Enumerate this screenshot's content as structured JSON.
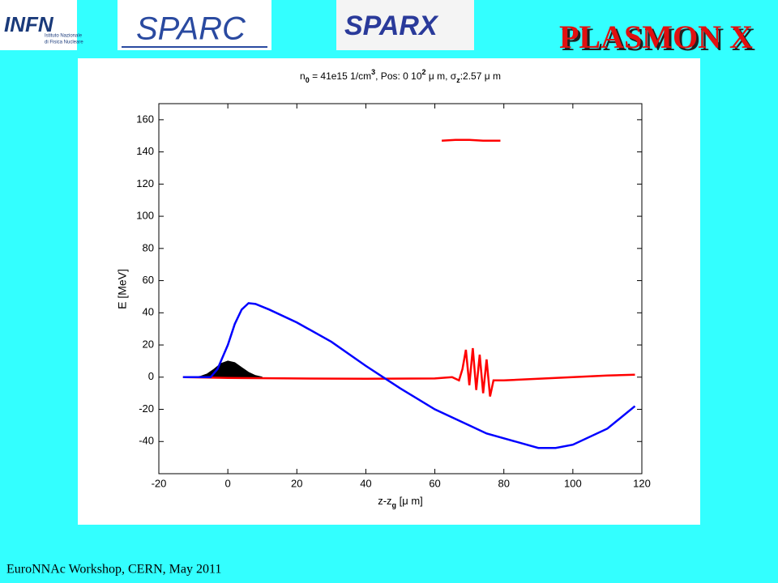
{
  "logos": {
    "infn": "INFN",
    "infn_sub": [
      "Istituto Nazionale",
      "di Fisica Nucleare"
    ],
    "sparc": "SPARC",
    "sparx": "SPARX",
    "plasmonx": "PLASMON X"
  },
  "footer": "EuroNNAc Workshop, CERN, May 2011",
  "chart_data": {
    "type": "line",
    "title": [
      {
        "text": "n"
      },
      {
        "text": "0",
        "shift": "sub"
      },
      {
        "text": " = 41e15 1/cm"
      },
      {
        "text": "3",
        "shift": "super"
      },
      {
        "text": ", Pos: 0 10"
      },
      {
        "text": "2",
        "shift": "super"
      },
      {
        "text": " μ m, σ"
      },
      {
        "text": "z",
        "shift": "sub"
      },
      {
        "text": ":2.57 μ m"
      }
    ],
    "xlabel": [
      {
        "text": "z-z"
      },
      {
        "text": "g",
        "shift": "sub"
      },
      {
        "text": " [μ m]"
      }
    ],
    "ylabel": "E [MeV]",
    "xlim": [
      -20,
      120
    ],
    "ylim": [
      -60,
      170
    ],
    "xticks": [
      -20,
      0,
      20,
      40,
      60,
      80,
      100,
      120
    ],
    "yticks": [
      -40,
      -20,
      0,
      20,
      40,
      60,
      80,
      100,
      120,
      140,
      160
    ],
    "grid": false,
    "series": [
      {
        "color": "#000000",
        "kind": "area",
        "x": [
          -10,
          -8,
          -6,
          -4,
          -2,
          0,
          2,
          4,
          6,
          8,
          10
        ],
        "values": [
          0,
          0.5,
          2,
          5,
          8.5,
          10,
          9,
          6,
          3,
          1,
          0
        ]
      },
      {
        "color": "#ff0000",
        "kind": "line",
        "x": [
          -13,
          0,
          20,
          40,
          60,
          65,
          67,
          68,
          69,
          70,
          71,
          72,
          73,
          74,
          75,
          76,
          77,
          80,
          90,
          100,
          110,
          118
        ],
        "values": [
          0,
          -0.5,
          -0.8,
          -1,
          -0.8,
          0,
          -2,
          5,
          17,
          -5,
          18,
          -8,
          14,
          -10,
          11,
          -12,
          -2,
          -2,
          -1,
          0,
          1,
          1.5
        ]
      },
      {
        "color": "#ff0000",
        "kind": "line",
        "x": [
          62,
          66,
          70,
          74,
          79
        ],
        "values": [
          147,
          147.5,
          147.5,
          147,
          147
        ]
      },
      {
        "color": "#0000ff",
        "kind": "line",
        "x": [
          -13,
          -5,
          -3,
          0,
          2,
          4,
          6,
          8,
          12,
          20,
          30,
          40,
          45,
          50,
          60,
          70,
          75,
          80,
          90,
          95,
          100,
          110,
          118
        ],
        "values": [
          0,
          0,
          5,
          20,
          33,
          42,
          46,
          45.5,
          42,
          34,
          22,
          7,
          0,
          -7,
          -20,
          -30,
          -35,
          -38,
          -44,
          -44,
          -42,
          -32,
          -18
        ]
      }
    ]
  }
}
